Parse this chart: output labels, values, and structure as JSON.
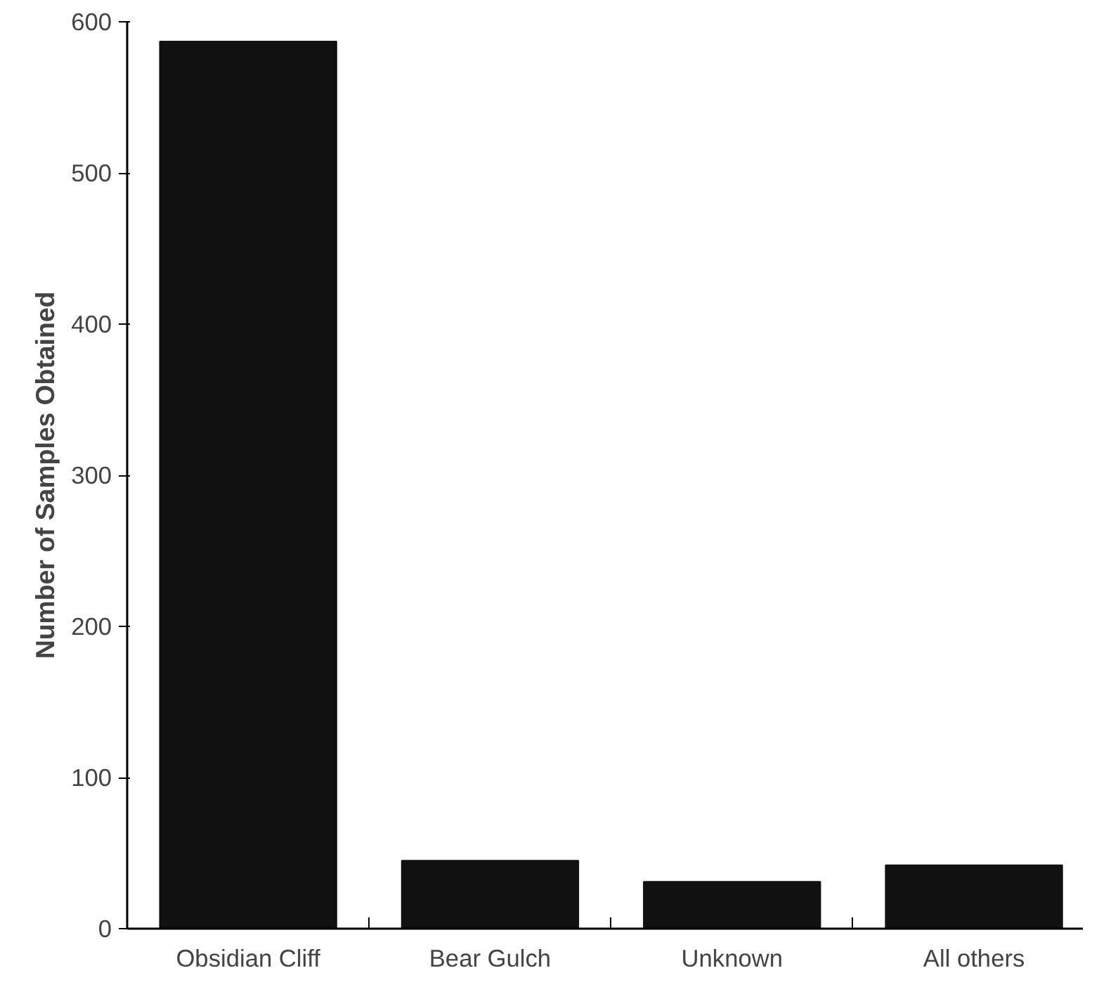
{
  "chart_data": {
    "type": "bar",
    "ylabel": "Number of Samples Obtained",
    "categories": [
      "Obsidian Cliff",
      "Bear Gulch",
      "Unknown",
      "All others"
    ],
    "values": [
      587,
      45,
      31,
      42
    ],
    "color": "#111111",
    "ylim": [
      0,
      600
    ],
    "yticks": [
      0,
      100,
      200,
      300,
      400,
      500,
      600
    ],
    "grid": false
  }
}
